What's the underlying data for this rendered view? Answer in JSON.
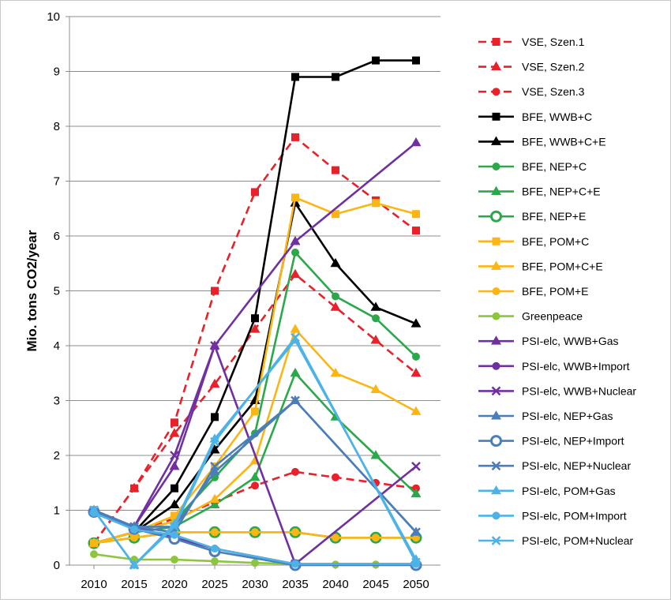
{
  "chart_data": {
    "type": "line",
    "title": "",
    "xlabel": "",
    "ylabel": "Mio. tons CO2/year",
    "ylim": [
      0,
      10
    ],
    "yticks": [
      0,
      1,
      2,
      3,
      4,
      5,
      6,
      7,
      8,
      9,
      10
    ],
    "x": [
      2010,
      2015,
      2020,
      2025,
      2030,
      2035,
      2040,
      2045,
      2050
    ],
    "grid": "horizontal",
    "legend_position": "right",
    "series": [
      {
        "name": "VSE, Szen.1",
        "color": "#e8212a",
        "dash": "dashed",
        "marker": "square",
        "fill": "solid",
        "points": [
          [
            2010,
            0.4
          ],
          [
            2015,
            1.4
          ],
          [
            2020,
            2.6
          ],
          [
            2025,
            5.0
          ],
          [
            2030,
            6.8
          ],
          [
            2035,
            7.8
          ],
          [
            2040,
            7.2
          ],
          [
            2045,
            6.65
          ],
          [
            2050,
            6.1
          ]
        ]
      },
      {
        "name": "VSE, Szen.2",
        "color": "#e8212a",
        "dash": "dashed",
        "marker": "triangle",
        "fill": "solid",
        "points": [
          [
            2010,
            0.4
          ],
          [
            2015,
            1.4
          ],
          [
            2020,
            2.4
          ],
          [
            2025,
            3.3
          ],
          [
            2030,
            4.3
          ],
          [
            2035,
            5.3
          ],
          [
            2040,
            4.7
          ],
          [
            2045,
            4.1
          ],
          [
            2050,
            3.5
          ]
        ]
      },
      {
        "name": "VSE, Szen.3",
        "color": "#e8212a",
        "dash": "dashed",
        "marker": "circle",
        "fill": "solid",
        "points": [
          [
            2010,
            0.4
          ],
          [
            2015,
            0.6
          ],
          [
            2020,
            0.85
          ],
          [
            2025,
            1.15
          ],
          [
            2030,
            1.45
          ],
          [
            2035,
            1.7
          ],
          [
            2040,
            1.6
          ],
          [
            2045,
            1.5
          ],
          [
            2050,
            1.4
          ]
        ]
      },
      {
        "name": "BFE, WWB+C",
        "color": "#000000",
        "dash": "solid",
        "marker": "square",
        "fill": "solid",
        "points": [
          [
            2010,
            0.4
          ],
          [
            2015,
            0.6
          ],
          [
            2020,
            1.4
          ],
          [
            2025,
            2.7
          ],
          [
            2030,
            4.5
          ],
          [
            2035,
            8.9
          ],
          [
            2040,
            8.9
          ],
          [
            2045,
            9.2
          ],
          [
            2050,
            9.2
          ]
        ]
      },
      {
        "name": "BFE, WWB+C+E",
        "color": "#000000",
        "dash": "solid",
        "marker": "triangle",
        "fill": "solid",
        "points": [
          [
            2010,
            0.4
          ],
          [
            2015,
            0.6
          ],
          [
            2020,
            1.1
          ],
          [
            2025,
            2.1
          ],
          [
            2030,
            3.0
          ],
          [
            2035,
            6.6
          ],
          [
            2040,
            5.5
          ],
          [
            2045,
            4.7
          ],
          [
            2050,
            4.4
          ]
        ]
      },
      {
        "name": "BFE, NEP+C",
        "color": "#2aa84a",
        "dash": "solid",
        "marker": "circle",
        "fill": "solid",
        "points": [
          [
            2010,
            0.4
          ],
          [
            2015,
            0.6
          ],
          [
            2020,
            0.8
          ],
          [
            2025,
            1.6
          ],
          [
            2030,
            2.4
          ],
          [
            2035,
            5.7
          ],
          [
            2040,
            4.9
          ],
          [
            2045,
            4.5
          ],
          [
            2050,
            3.8
          ]
        ]
      },
      {
        "name": "BFE, NEP+C+E",
        "color": "#2aa84a",
        "dash": "solid",
        "marker": "triangle",
        "fill": "solid",
        "points": [
          [
            2010,
            0.4
          ],
          [
            2015,
            0.6
          ],
          [
            2020,
            0.7
          ],
          [
            2025,
            1.1
          ],
          [
            2030,
            1.6
          ],
          [
            2035,
            3.5
          ],
          [
            2040,
            2.7
          ],
          [
            2045,
            2.0
          ],
          [
            2050,
            1.3
          ]
        ]
      },
      {
        "name": "BFE, NEP+E",
        "color": "#2aa84a",
        "dash": "solid",
        "marker": "circle",
        "fill": "hollow",
        "points": [
          [
            2010,
            0.4
          ],
          [
            2015,
            0.5
          ],
          [
            2020,
            0.6
          ],
          [
            2025,
            0.6
          ],
          [
            2030,
            0.6
          ],
          [
            2035,
            0.6
          ],
          [
            2040,
            0.5
          ],
          [
            2045,
            0.5
          ],
          [
            2050,
            0.5
          ]
        ]
      },
      {
        "name": "BFE, POM+C",
        "color": "#fbb616",
        "dash": "solid",
        "marker": "square",
        "fill": "solid",
        "points": [
          [
            2010,
            0.4
          ],
          [
            2015,
            0.6
          ],
          [
            2020,
            0.9
          ],
          [
            2025,
            1.8
          ],
          [
            2030,
            2.8
          ],
          [
            2035,
            6.7
          ],
          [
            2040,
            6.4
          ],
          [
            2045,
            6.6
          ],
          [
            2050,
            6.4
          ]
        ]
      },
      {
        "name": "BFE, POM+C+E",
        "color": "#fbb616",
        "dash": "solid",
        "marker": "triangle",
        "fill": "solid",
        "points": [
          [
            2010,
            0.4
          ],
          [
            2015,
            0.6
          ],
          [
            2020,
            0.8
          ],
          [
            2025,
            1.2
          ],
          [
            2030,
            1.9
          ],
          [
            2035,
            4.3
          ],
          [
            2040,
            3.5
          ],
          [
            2045,
            3.2
          ],
          [
            2050,
            2.8
          ]
        ]
      },
      {
        "name": "BFE, POM+E",
        "color": "#fbb616",
        "dash": "solid",
        "marker": "circle",
        "fill": "solid",
        "points": [
          [
            2010,
            0.4
          ],
          [
            2015,
            0.5
          ],
          [
            2020,
            0.6
          ],
          [
            2025,
            0.6
          ],
          [
            2030,
            0.6
          ],
          [
            2035,
            0.6
          ],
          [
            2040,
            0.5
          ],
          [
            2045,
            0.5
          ],
          [
            2050,
            0.5
          ]
        ]
      },
      {
        "name": "Greenpeace",
        "color": "#8cc63f",
        "dash": "solid",
        "marker": "circle",
        "fill": "solid",
        "points": [
          [
            2010,
            0.2
          ],
          [
            2015,
            0.1
          ],
          [
            2020,
            0.1
          ],
          [
            2025,
            0.07
          ],
          [
            2030,
            0.04
          ],
          [
            2035,
            0.02
          ],
          [
            2040,
            0.01
          ],
          [
            2045,
            0.01
          ],
          [
            2050,
            0.01
          ]
        ]
      },
      {
        "name": "PSI-elc, WWB+Gas",
        "color": "#7030a0",
        "dash": "solid",
        "marker": "triangle",
        "fill": "solid",
        "points": [
          [
            2010,
            1.0
          ],
          [
            2015,
            0.7
          ],
          [
            2020,
            1.8
          ],
          [
            2025,
            4.0
          ],
          [
            2035,
            5.9
          ],
          [
            2050,
            7.7
          ]
        ]
      },
      {
        "name": "PSI-elc, WWB+Import",
        "color": "#7030a0",
        "dash": "solid",
        "marker": "circle",
        "fill": "solid",
        "points": [
          [
            2010,
            1.0
          ],
          [
            2015,
            0.7
          ],
          [
            2020,
            0.5
          ],
          [
            2025,
            0.3
          ],
          [
            2035,
            0.02
          ],
          [
            2050,
            0.02
          ]
        ]
      },
      {
        "name": "PSI-elc, WWB+Nuclear",
        "color": "#7030a0",
        "dash": "solid",
        "marker": "x",
        "fill": "solid",
        "points": [
          [
            2010,
            1.0
          ],
          [
            2015,
            0.7
          ],
          [
            2020,
            2.0
          ],
          [
            2025,
            4.0
          ],
          [
            2035,
            0.02
          ],
          [
            2050,
            1.8
          ]
        ]
      },
      {
        "name": "PSI-elc, NEP+Gas",
        "color": "#4a7ebb",
        "dash": "solid",
        "marker": "triangle",
        "fill": "solid",
        "points": [
          [
            2010,
            1.0
          ],
          [
            2015,
            0.7
          ],
          [
            2020,
            0.7
          ],
          [
            2025,
            1.7
          ],
          [
            2035,
            3.0
          ],
          [
            2050,
            0.6
          ]
        ]
      },
      {
        "name": "PSI-elc, NEP+Import",
        "color": "#4a7ebb",
        "dash": "solid",
        "marker": "circle",
        "fill": "hollow",
        "points": [
          [
            2010,
            0.97
          ],
          [
            2015,
            0.66
          ],
          [
            2020,
            0.48
          ],
          [
            2025,
            0.25
          ],
          [
            2035,
            0.0
          ],
          [
            2050,
            0.0
          ]
        ]
      },
      {
        "name": "PSI-elc, NEP+Nuclear",
        "color": "#4a7ebb",
        "dash": "solid",
        "marker": "x",
        "fill": "solid",
        "points": [
          [
            2010,
            1.0
          ],
          [
            2015,
            0.7
          ],
          [
            2020,
            0.6
          ],
          [
            2025,
            1.8
          ],
          [
            2035,
            3.0
          ],
          [
            2050,
            0.6
          ]
        ]
      },
      {
        "name": "PSI-elc, POM+Gas",
        "color": "#4db3e6",
        "dash": "solid",
        "marker": "triangle",
        "fill": "solid",
        "points": [
          [
            2010,
            1.0
          ],
          [
            2015,
            0.0
          ],
          [
            2020,
            0.75
          ],
          [
            2025,
            2.3
          ],
          [
            2035,
            4.1
          ],
          [
            2050,
            0.1
          ]
        ]
      },
      {
        "name": "PSI-elc, POM+Import",
        "color": "#4db3e6",
        "dash": "solid",
        "marker": "circle",
        "fill": "solid",
        "points": [
          [
            2010,
            0.95
          ],
          [
            2015,
            0.65
          ],
          [
            2020,
            0.55
          ],
          [
            2025,
            0.3
          ],
          [
            2035,
            0.02
          ],
          [
            2050,
            0.02
          ]
        ]
      },
      {
        "name": "PSI-elc, POM+Nuclear",
        "color": "#4db3e6",
        "dash": "solid",
        "marker": "x",
        "fill": "solid",
        "points": [
          [
            2010,
            1.0
          ],
          [
            2015,
            0.0
          ],
          [
            2020,
            0.7
          ],
          [
            2025,
            2.25
          ],
          [
            2035,
            4.15
          ],
          [
            2050,
            0.05
          ]
        ]
      }
    ]
  }
}
